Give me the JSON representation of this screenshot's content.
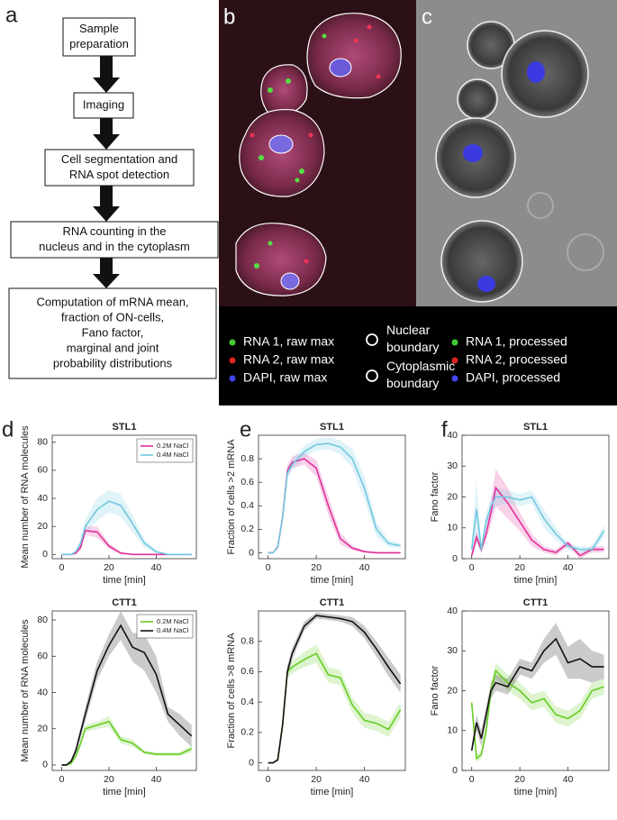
{
  "panel_labels": [
    "a",
    "b",
    "c",
    "d",
    "e",
    "f"
  ],
  "flowchart": {
    "steps": [
      {
        "lines": [
          "Sample",
          "preparation"
        ]
      },
      {
        "lines": [
          "Imaging"
        ]
      },
      {
        "lines": [
          "Cell segmentation and",
          "RNA spot detection"
        ]
      },
      {
        "lines": [
          "RNA counting in the",
          "nucleus and in the cytoplasm"
        ]
      },
      {
        "lines": [
          "Computation of mRNA mean,",
          "fraction of ON-cells,",
          "Fano factor,",
          "marginal and joint",
          "probability distributions"
        ]
      }
    ]
  },
  "microscopy_legend": [
    {
      "lines": [
        "RNA 1, raw max"
      ],
      "marker": "dot",
      "color": "#44cc33"
    },
    {
      "lines": [
        "RNA 2, raw max"
      ],
      "marker": "dot",
      "color": "#dd2222"
    },
    {
      "lines": [
        "DAPI, raw max"
      ],
      "marker": "dot",
      "color": "#4444ee"
    },
    {
      "lines": [
        "Nuclear",
        "boundary"
      ],
      "marker": "ring",
      "color": "#ffffff"
    },
    {
      "lines": [
        "Cytoplasmic",
        "boundary"
      ],
      "marker": "ring",
      "color": "#ffffff"
    },
    {
      "lines": [
        "RNA 1, processed"
      ],
      "marker": "dot",
      "color": "#44cc33"
    },
    {
      "lines": [
        "RNA 2, processed"
      ],
      "marker": "dot",
      "color": "#dd2222"
    },
    {
      "lines": [
        "DAPI, processed"
      ],
      "marker": "dot",
      "color": "#4444ee"
    }
  ],
  "chart_data": [
    {
      "type": "line",
      "title": "STL1",
      "xlabel": "time [min]",
      "ylabel": "Mean number of RNA molecules",
      "x": [
        0,
        2,
        4,
        6,
        8,
        10,
        15,
        20,
        25,
        30,
        35,
        40,
        45,
        50,
        55
      ],
      "series": [
        {
          "name": "0.2M NaCl",
          "color": "#e0309a",
          "values": [
            0,
            0,
            0,
            1,
            5,
            17,
            16,
            6,
            1,
            0,
            0,
            0,
            0,
            0,
            0
          ],
          "error": [
            0,
            0,
            0,
            1,
            2,
            3,
            4,
            2,
            1,
            0,
            0,
            0,
            0,
            0,
            0
          ]
        },
        {
          "name": "0.4M NaCl",
          "color": "#70c8e0",
          "values": [
            0,
            0,
            0,
            2,
            8,
            20,
            32,
            38,
            35,
            22,
            8,
            2,
            0,
            0,
            0
          ],
          "error": [
            0,
            0,
            0,
            1,
            3,
            5,
            8,
            8,
            8,
            6,
            3,
            1,
            0,
            0,
            0
          ]
        }
      ],
      "xlim": [
        -4,
        57
      ],
      "ylim": [
        -3,
        85
      ],
      "xticks": [
        0,
        20,
        40
      ],
      "yticks": [
        0,
        20,
        40,
        60,
        80
      ],
      "legend": "upper right"
    },
    {
      "type": "line",
      "title": "STL1",
      "xlabel": "time [min]",
      "ylabel": "Fraction of cells >2 mRNA",
      "x": [
        0,
        2,
        4,
        6,
        8,
        10,
        15,
        20,
        25,
        30,
        35,
        40,
        45,
        50,
        55
      ],
      "series": [
        {
          "color": "#e0309a",
          "values": [
            0,
            0,
            0.05,
            0.3,
            0.7,
            0.77,
            0.8,
            0.72,
            0.4,
            0.12,
            0.04,
            0.01,
            0,
            0,
            0
          ],
          "error": [
            0,
            0,
            0.02,
            0.04,
            0.05,
            0.05,
            0.05,
            0.07,
            0.08,
            0.05,
            0.02,
            0.01,
            0,
            0,
            0
          ]
        },
        {
          "color": "#70c8e0",
          "values": [
            0,
            0,
            0.05,
            0.3,
            0.68,
            0.75,
            0.86,
            0.92,
            0.93,
            0.9,
            0.8,
            0.55,
            0.2,
            0.08,
            0.06
          ],
          "error": [
            0,
            0,
            0.02,
            0.04,
            0.05,
            0.05,
            0.05,
            0.05,
            0.05,
            0.06,
            0.08,
            0.1,
            0.06,
            0.03,
            0.02
          ]
        }
      ],
      "xlim": [
        -4,
        57
      ],
      "ylim": [
        -0.05,
        1.0
      ],
      "xticks": [
        0,
        20,
        40
      ],
      "yticks": [
        0,
        0.2,
        0.4,
        0.6,
        0.8
      ]
    },
    {
      "type": "line",
      "title": "STL1",
      "xlabel": "time [min]",
      "ylabel": "Fano factor",
      "x": [
        0,
        2,
        4,
        6,
        8,
        10,
        15,
        20,
        25,
        30,
        35,
        40,
        45,
        50,
        55
      ],
      "series": [
        {
          "color": "#e0309a",
          "values": [
            1,
            7,
            3,
            8,
            15,
            23,
            18,
            12,
            6,
            3,
            2,
            5,
            1,
            3,
            3
          ],
          "error": [
            1,
            2,
            1,
            2,
            4,
            6,
            5,
            3,
            2,
            1,
            1,
            1,
            1,
            1,
            1
          ]
        },
        {
          "color": "#70c8e0",
          "values": [
            3,
            16,
            3,
            12,
            17,
            20,
            20,
            19,
            20,
            13,
            8,
            4,
            3,
            3,
            9
          ],
          "error": [
            2,
            10,
            2,
            3,
            3,
            3,
            2,
            2,
            2,
            3,
            2,
            1,
            1,
            1,
            2
          ]
        }
      ],
      "xlim": [
        -4,
        57
      ],
      "ylim": [
        0,
        40
      ],
      "xticks": [
        0,
        20,
        40
      ],
      "yticks": [
        0,
        10,
        20,
        30,
        40
      ]
    },
    {
      "type": "line",
      "title": "CTT1",
      "xlabel": "time [min]",
      "ylabel": "Mean number of RNA molecules",
      "x": [
        0,
        2,
        4,
        6,
        8,
        10,
        15,
        20,
        25,
        30,
        35,
        40,
        45,
        50,
        55
      ],
      "series": [
        {
          "name": "0.2M NaCl",
          "color": "#66cc22",
          "values": [
            0,
            0,
            1,
            5,
            12,
            20,
            22,
            24,
            14,
            12,
            7,
            6,
            6,
            6,
            9
          ],
          "error": [
            0,
            0,
            1,
            1,
            2,
            2,
            2,
            3,
            2,
            2,
            1,
            1,
            1,
            1,
            2
          ]
        },
        {
          "name": "0.4M NaCl",
          "color": "#111111",
          "values": [
            0,
            0,
            2,
            8,
            18,
            28,
            52,
            66,
            77,
            65,
            62,
            50,
            28,
            22,
            16
          ],
          "error": [
            0,
            0,
            1,
            2,
            3,
            4,
            5,
            6,
            8,
            8,
            10,
            10,
            4,
            6,
            6
          ]
        }
      ],
      "xlim": [
        -4,
        57
      ],
      "ylim": [
        -3,
        85
      ],
      "xticks": [
        0,
        20,
        40
      ],
      "yticks": [
        0,
        20,
        40,
        60,
        80
      ],
      "legend": "upper right"
    },
    {
      "type": "line",
      "title": "CTT1",
      "xlabel": "time [min]",
      "ylabel": "Fraction of cells >8 mRNA",
      "x": [
        0,
        2,
        4,
        6,
        8,
        10,
        15,
        20,
        25,
        30,
        35,
        40,
        45,
        50,
        55
      ],
      "series": [
        {
          "color": "#66cc22",
          "values": [
            0,
            0,
            0.02,
            0.25,
            0.6,
            0.63,
            0.68,
            0.72,
            0.58,
            0.56,
            0.38,
            0.28,
            0.26,
            0.22,
            0.35
          ],
          "error": [
            0,
            0,
            0.01,
            0.03,
            0.04,
            0.04,
            0.05,
            0.06,
            0.05,
            0.05,
            0.05,
            0.05,
            0.05,
            0.05,
            0.05
          ]
        },
        {
          "color": "#111111",
          "values": [
            0,
            0,
            0.02,
            0.25,
            0.6,
            0.72,
            0.9,
            0.97,
            0.96,
            0.95,
            0.93,
            0.86,
            0.75,
            0.63,
            0.52
          ],
          "error": [
            0,
            0,
            0.01,
            0.03,
            0.04,
            0.04,
            0.03,
            0.02,
            0.02,
            0.02,
            0.03,
            0.04,
            0.05,
            0.06,
            0.06
          ]
        }
      ],
      "xlim": [
        -4,
        57
      ],
      "ylim": [
        -0.05,
        1.0
      ],
      "xticks": [
        0,
        20,
        40
      ],
      "yticks": [
        0,
        0.2,
        0.4,
        0.6,
        0.8
      ]
    },
    {
      "type": "line",
      "title": "CTT1",
      "xlabel": "time [min]",
      "ylabel": "Fano factor",
      "x": [
        0,
        2,
        4,
        6,
        8,
        10,
        15,
        20,
        25,
        30,
        35,
        40,
        45,
        50,
        55
      ],
      "series": [
        {
          "color": "#66cc22",
          "values": [
            17,
            3,
            4,
            10,
            20,
            25,
            22,
            20,
            17,
            18,
            14,
            13,
            15,
            20,
            21
          ],
          "error": [
            2,
            1,
            1,
            2,
            2,
            2,
            2,
            2,
            2,
            2,
            2,
            2,
            2,
            2,
            2
          ]
        },
        {
          "color": "#111111",
          "values": [
            5,
            12,
            8,
            14,
            20,
            22,
            21,
            26,
            25,
            30,
            33,
            27,
            28,
            26,
            26
          ],
          "error": [
            1,
            2,
            2,
            2,
            2,
            2,
            2,
            2,
            2,
            3,
            4,
            4,
            5,
            4,
            3
          ]
        }
      ],
      "xlim": [
        -4,
        57
      ],
      "ylim": [
        0,
        40
      ],
      "xticks": [
        0,
        20,
        40
      ],
      "yticks": [
        0,
        10,
        20,
        30,
        40
      ]
    }
  ]
}
